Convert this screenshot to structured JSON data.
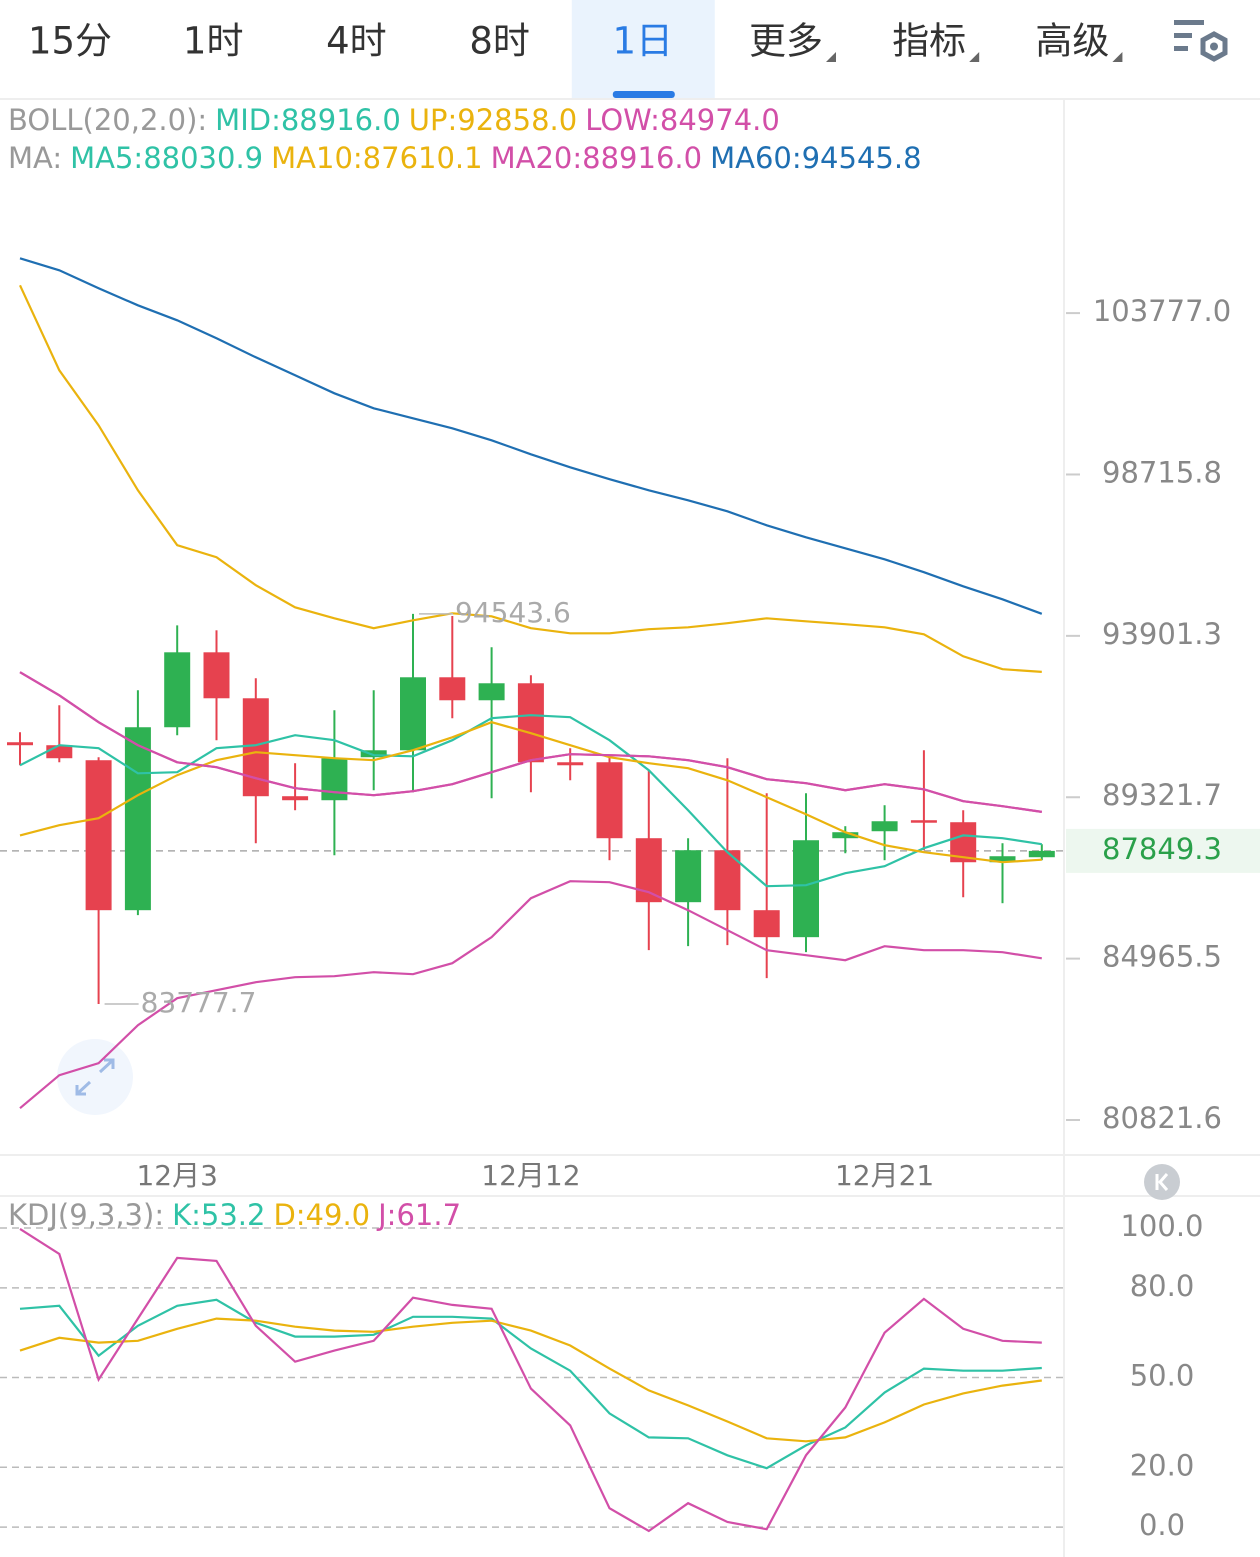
{
  "tabs": [
    {
      "label": "15分"
    },
    {
      "label": "1时"
    },
    {
      "label": "4时"
    },
    {
      "label": "8时"
    },
    {
      "label": "1日",
      "selected": true
    },
    {
      "label": "更多",
      "dropdown": true
    },
    {
      "label": "指标",
      "dropdown": true
    },
    {
      "label": "高级",
      "dropdown": true
    }
  ],
  "chart_data": [
    {
      "type": "candlestick",
      "log_scale": true,
      "grid": false,
      "categories": [
        null,
        null,
        null,
        null,
        "12月3",
        null,
        null,
        null,
        null,
        null,
        null,
        null,
        null,
        "12月12",
        null,
        null,
        null,
        null,
        null,
        null,
        null,
        null,
        "12月21",
        null,
        null,
        null,
        null
      ],
      "open": [
        90857,
        90773,
        90352,
        86250,
        91280,
        93424,
        92103,
        89350,
        89239,
        90436,
        90631,
        92704,
        92046,
        92532,
        90295,
        90295,
        88195,
        86464,
        87867,
        86250,
        85532,
        88195,
        88386,
        88688,
        88633,
        87541,
        87677
      ],
      "high": [
        91139,
        91904,
        90436,
        92332,
        94208,
        94063,
        92676,
        90268,
        91762,
        92332,
        94543.6,
        94480,
        93569,
        92762,
        90688,
        90492,
        90072,
        88195,
        90408,
        89433,
        89433,
        88524,
        89101,
        90631,
        88963,
        88058,
        88031
      ],
      "low": [
        90211,
        90295,
        83777.7,
        86117,
        91055,
        90913,
        88058,
        88963,
        87731,
        89516,
        89460,
        91535,
        89294,
        89460,
        89793,
        87596,
        85189,
        85294,
        85321,
        84455,
        85136,
        87785,
        87596,
        87867,
        86598,
        86437,
        87596
      ],
      "close": [
        90773,
        90408,
        86250,
        91280,
        93424,
        92103,
        89350,
        89239,
        90408,
        90631,
        92704,
        92046,
        92532,
        90295,
        90211,
        88195,
        86464,
        87867,
        86250,
        85532,
        88140,
        88359,
        88660,
        88660,
        87541,
        87704,
        87849.3
      ],
      "up_color": "#2eb152",
      "down_color": "#e6424f",
      "current_price": 87849.3,
      "current_price_color": "#2aa04a",
      "boll": {
        "title": "BOLL(20,2.0):",
        "series": [
          {
            "name": "MID:88916.0",
            "color": "#2fc2a6",
            "line_color": "#d24fa8",
            "values": [
              92849,
              92189,
              91422,
              90773,
              90295,
              90156,
              89850,
              89571,
              89460,
              89377,
              89488,
              89682,
              90017,
              90352,
              90520,
              90492,
              90463,
              90352,
              90156,
              89821,
              89710,
              89516,
              89682,
              89543,
              89211,
              89073,
              88916.0
            ]
          },
          {
            "name": "UP:92858.0",
            "color": "#eab30e",
            "values": [
              104675,
              101955,
              100232,
              98234,
              96575,
              96217,
              95386,
              94737,
              94415,
              94123,
              94356,
              94561,
              94473,
              94123,
              93977,
              93977,
              94094,
              94152,
              94269,
              94415,
              94326,
              94240,
              94152,
              93948,
              93310,
              92935,
              92858.0
            ]
          },
          {
            "name": "LOW:84974.0",
            "color": "#d24fa8",
            "values": [
              81118,
              81952,
              82256,
              83232,
              83930,
              84138,
              84347,
              84478,
              84504,
              84608,
              84557,
              84844,
              85531,
              86570,
              87027,
              87000,
              86731,
              86249,
              85716,
              85187,
              85055,
              84924,
              85293,
              85187,
              85187,
              85134,
              84974.0
            ]
          }
        ]
      },
      "ma": {
        "title": "MA:",
        "series": [
          {
            "name": "MA5:88030.9",
            "color": "#2fc2a6",
            "values": [
              90211,
              90773,
              90688,
              89988,
              90017,
              90688,
              90773,
              91055,
              90913,
              90492,
              90463,
              90913,
              91535,
              91620,
              91564,
              90913,
              90072,
              88963,
              87813,
              86893,
              86920,
              87244,
              87433,
              87922,
              88271,
              88195,
              88030.9
            ]
          },
          {
            "name": "MA10:87610.1",
            "color": "#eab30e",
            "values": [
              88271,
              88550,
              88743,
              89377,
              89933,
              90352,
              90576,
              90492,
              90408,
              90352,
              90632,
              90997,
              91422,
              91111,
              90773,
              90436,
              90268,
              90128,
              89793,
              89322,
              88853,
              88359,
              88004,
              87813,
              87677,
              87541,
              87610.1
            ]
          },
          {
            "name": "MA20:88916.0",
            "color": "#d24fa8",
            "values": [
              92849,
              92189,
              91422,
              90773,
              90295,
              90156,
              89850,
              89571,
              89460,
              89377,
              89488,
              89682,
              90017,
              90352,
              90520,
              90492,
              90463,
              90352,
              90156,
              89821,
              89710,
              89516,
              89682,
              89543,
              89211,
              89073,
              88916.0
            ]
          },
          {
            "name": "MA60:94545.8",
            "color": "#1f6fb2",
            "values": [
              105553,
              105162,
              104578,
              104029,
              103546,
              102971,
              102367,
              101797,
              101231,
              100761,
              100449,
              100139,
              99767,
              99335,
              98936,
              98570,
              98234,
              97930,
              97596,
              97175,
              96814,
              96485,
              96156,
              95771,
              95355,
              94972,
              94545.8
            ]
          }
        ]
      },
      "ylim": [
        79950,
        110860
      ],
      "yticks": [
        {
          "value": 103777.0,
          "label": "103777.0"
        },
        98715.8,
        93901.3,
        89321.7,
        84965.5,
        80821.6
      ]
    },
    {
      "type": "line",
      "title": "KDJ(9,3,3):",
      "grid": true,
      "series": [
        {
          "name": "K:53.2",
          "color": "#2fc2a6",
          "values": [
            73.0,
            74.0,
            57.3,
            67.3,
            74.0,
            76.0,
            68.3,
            63.7,
            63.7,
            64.3,
            70.3,
            70.3,
            69.7,
            59.7,
            52.3,
            38.0,
            30.0,
            29.7,
            24.0,
            19.7,
            27.3,
            33.3,
            45.0,
            53.0,
            52.3,
            52.3,
            53.2
          ]
        },
        {
          "name": "D:49.0",
          "color": "#eab30e",
          "values": [
            59.0,
            63.3,
            61.7,
            62.3,
            66.3,
            69.7,
            69.0,
            67.0,
            65.7,
            65.3,
            67.0,
            68.3,
            69.0,
            65.7,
            60.7,
            53.0,
            45.7,
            40.7,
            35.3,
            29.7,
            28.7,
            30.0,
            35.0,
            41.0,
            44.7,
            47.3,
            49.0
          ]
        },
        {
          "name": "J:61.7",
          "color": "#d24fa8",
          "values": [
            99.7,
            91.3,
            49.3,
            69.7,
            90.0,
            89.0,
            67.3,
            55.3,
            59.0,
            62.3,
            76.7,
            74.3,
            73.0,
            46.3,
            34.0,
            6.3,
            -1.3,
            8.0,
            1.7,
            -0.7,
            24.0,
            40.0,
            65.0,
            76.3,
            66.3,
            62.3,
            61.7
          ]
        }
      ],
      "ylim": [
        -10,
        110.7
      ],
      "yticks": [
        {
          "value": 100,
          "label": "100.0"
        },
        {
          "value": 80,
          "label": "80.0"
        },
        {
          "value": 50,
          "label": "50.0"
        },
        {
          "value": 20,
          "label": "20.0"
        },
        {
          "value": 0,
          "label": "0.0"
        }
      ]
    }
  ]
}
